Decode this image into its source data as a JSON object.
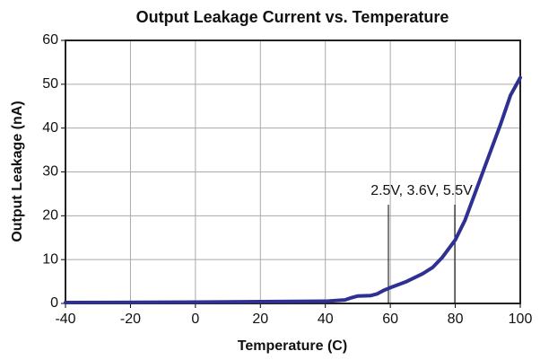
{
  "chart_data": {
    "type": "line",
    "title": "Output Leakage Current vs. Temperature",
    "x_label": "Temperature (C)",
    "y_label": "Output Leakage (nA)",
    "annotation": "2.5V, 3.6V, 5.5V",
    "x": [
      -40,
      0,
      40,
      46,
      48,
      50,
      54,
      56,
      58,
      60,
      65,
      70,
      73,
      76,
      80,
      83,
      86,
      90,
      94,
      97,
      100
    ],
    "series": [
      {
        "name": "2.5V, 3.6V, 5.5V",
        "color": "#2e3192",
        "values": [
          0.2,
          0.3,
          0.5,
          0.8,
          1.3,
          1.7,
          1.8,
          2.2,
          3,
          3.6,
          5,
          6.8,
          8.2,
          10.5,
          14.5,
          19,
          25,
          33,
          41,
          47.5,
          51.5
        ]
      }
    ],
    "xlim": [
      -40,
      100
    ],
    "xticks": [
      -40,
      -20,
      0,
      20,
      40,
      60,
      80,
      100
    ],
    "ylim": [
      0,
      60
    ],
    "yticks": [
      0,
      10,
      20,
      30,
      40,
      50,
      60
    ],
    "grid": true
  }
}
